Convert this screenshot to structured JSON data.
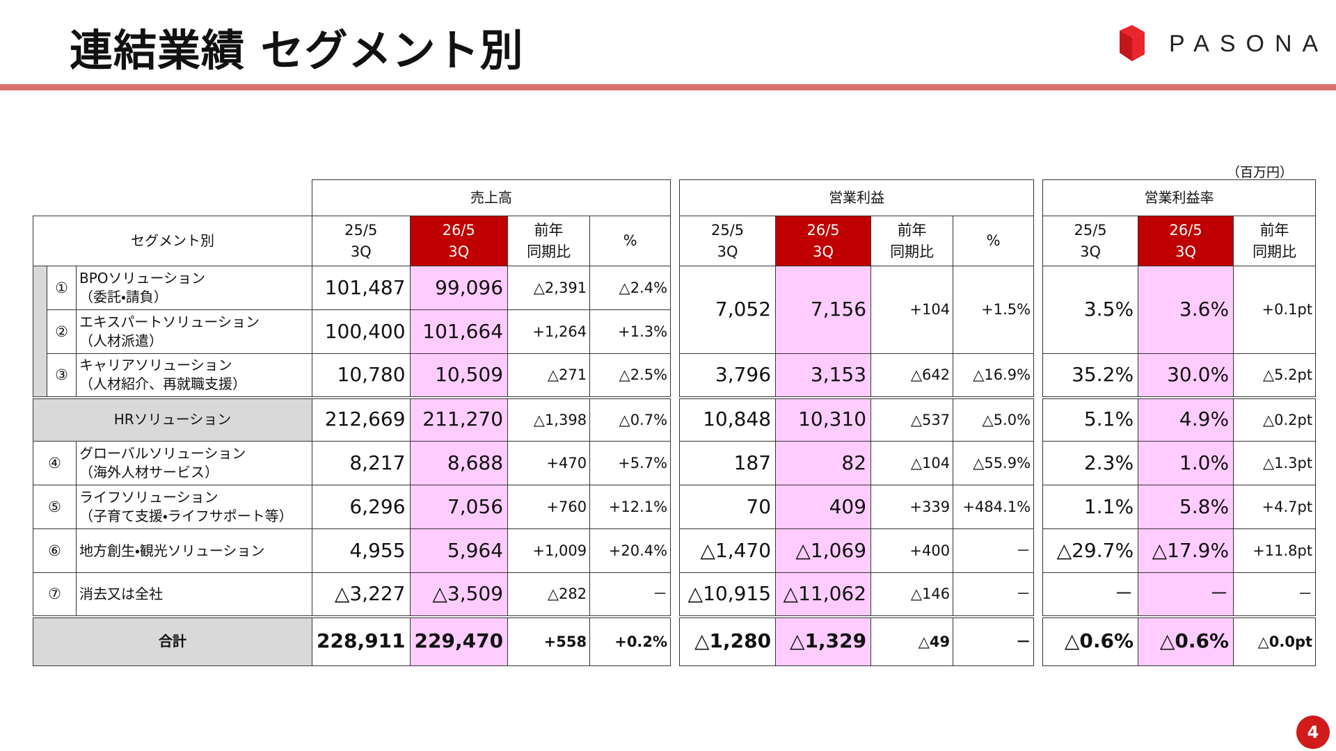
{
  "header": {
    "title": "連結業績 セグメント別",
    "logo": "PASONA"
  },
  "unit": "（百万円）",
  "table": {
    "segment_header": "セグメント別",
    "groups": [
      {
        "title": "売上高",
        "columns": [
          "25/5\n3Q",
          "26/5\n3Q",
          "前年\n同期比",
          "%"
        ]
      },
      {
        "title": "営業利益",
        "columns": [
          "25/5\n3Q",
          "26/5\n3Q",
          "前年\n同期比",
          "%"
        ]
      },
      {
        "title": "営業利益率",
        "columns": [
          "25/5\n3Q",
          "26/5\n3Q",
          "前年\n同期比"
        ]
      }
    ],
    "rows": [
      {
        "marker": "①",
        "name": "BPOソリューション\n（委託・請負）",
        "values": [
          [
            "101,487",
            "99,096",
            "△2,391",
            "△2.4%"
          ],
          [
            "7,052",
            "7,156",
            "+104",
            "+1.5%"
          ],
          [
            "3.5%",
            "3.6%",
            "+0.1pt"
          ]
        ]
      },
      {
        "marker": "②",
        "name": "エキスパートソリューション\n（人材派遣）",
        "values": [
          [
            "100,400",
            "101,664",
            "+1,264",
            "+1.3%"
          ]
        ]
      },
      {
        "marker": "③",
        "name": "キャリアソリューション\n（人材紹介、再就職支援）",
        "values": [
          [
            "10,780",
            "10,509",
            "△271",
            "△2.5%"
          ],
          [
            "3,796",
            "3,153",
            "△642",
            "△16.9%"
          ],
          [
            "35.2%",
            "30.0%",
            "△5.2pt"
          ]
        ]
      },
      {
        "name": "HRソリューション",
        "values": [
          [
            "212,669",
            "211,270",
            "△1,398",
            "△0.7%"
          ],
          [
            "10,848",
            "10,310",
            "△537",
            "△5.0%"
          ],
          [
            "5.1%",
            "4.9%",
            "△0.2pt"
          ]
        ]
      },
      {
        "marker": "④",
        "name": "グローバルソリューション\n（海外人材サービス）",
        "values": [
          [
            "8,217",
            "8,688",
            "+470",
            "+5.7%"
          ],
          [
            "187",
            "82",
            "△104",
            "△55.9%"
          ],
          [
            "2.3%",
            "1.0%",
            "△1.3pt"
          ]
        ]
      },
      {
        "marker": "⑤",
        "name": "ライフソリューション\n（子育て支援・ライフサポート等）",
        "values": [
          [
            "6,296",
            "7,056",
            "+760",
            "+12.1%"
          ],
          [
            "70",
            "409",
            "+339",
            "+484.1%"
          ],
          [
            "1.1%",
            "5.8%",
            "+4.7pt"
          ]
        ]
      },
      {
        "marker": "⑥",
        "name": "地方創生・観光ソリューション",
        "values": [
          [
            "4,955",
            "5,964",
            "+1,009",
            "+20.4%"
          ],
          [
            "△1,470",
            "△1,069",
            "+400",
            "－"
          ],
          [
            "△29.7%",
            "△17.9%",
            "+11.8pt"
          ]
        ]
      },
      {
        "marker": "⑦",
        "name": "消去又は全社",
        "values": [
          [
            "△3,227",
            "△3,509",
            "△282",
            "－"
          ],
          [
            "△10,915",
            "△11,062",
            "△146",
            "－"
          ],
          [
            "－",
            "－",
            "－"
          ]
        ]
      }
    ],
    "total": {
      "name": "合計",
      "values": [
        [
          "228,911",
          "229,470",
          "+558",
          "+0.2%"
        ],
        [
          "△1,280",
          "△1,329",
          "△49",
          "－"
        ],
        [
          "△0.6%",
          "△0.6%",
          "△0.0pt"
        ]
      ]
    }
  },
  "page_number": "4"
}
